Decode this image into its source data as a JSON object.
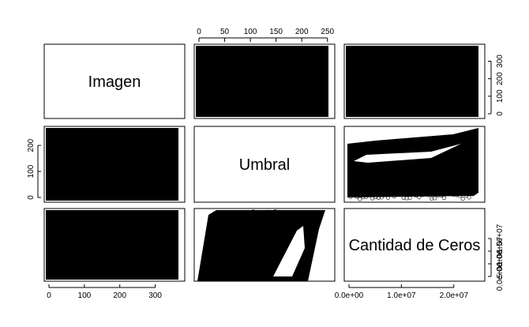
{
  "chart_data": {
    "type": "scatter",
    "subtype": "pairs-matrix",
    "variables": [
      {
        "name": "Imagen",
        "range": [
          0,
          370
        ],
        "ticks": [
          0,
          100,
          200,
          300
        ],
        "tick_labels": [
          "0",
          "100",
          "200",
          "300"
        ]
      },
      {
        "name": "Umbral",
        "range": [
          0,
          255
        ],
        "ticks": [
          0,
          50,
          100,
          150,
          200,
          250
        ],
        "tick_labels": [
          "0",
          "50",
          "100",
          "150",
          "200",
          "250"
        ],
        "left_ticks": [
          0,
          100,
          200
        ],
        "left_tick_labels": [
          "0",
          "100",
          "200"
        ]
      },
      {
        "name": "Cantidad de Ceros",
        "range": [
          0,
          25000000
        ],
        "ticks": [
          0,
          10000000,
          20000000
        ],
        "tick_labels": [
          "0.0e+00",
          "1.0e+07",
          "2.0e+07"
        ],
        "right_ticks": [
          0,
          5000000,
          10000000,
          15000000
        ],
        "right_tick_labels": [
          "0.0e+00",
          "5.0e+06",
          "1.0e+07",
          "1.5e+07"
        ]
      }
    ],
    "right_axis_row1": {
      "ticks": [
        0,
        100,
        200,
        300
      ],
      "tick_labels": [
        "0",
        "100",
        "200",
        "300"
      ]
    },
    "marker": "open-circle",
    "marker_color": "#000000",
    "panels_description": "Dense overplotted point clouds in every off-diagonal panel"
  }
}
